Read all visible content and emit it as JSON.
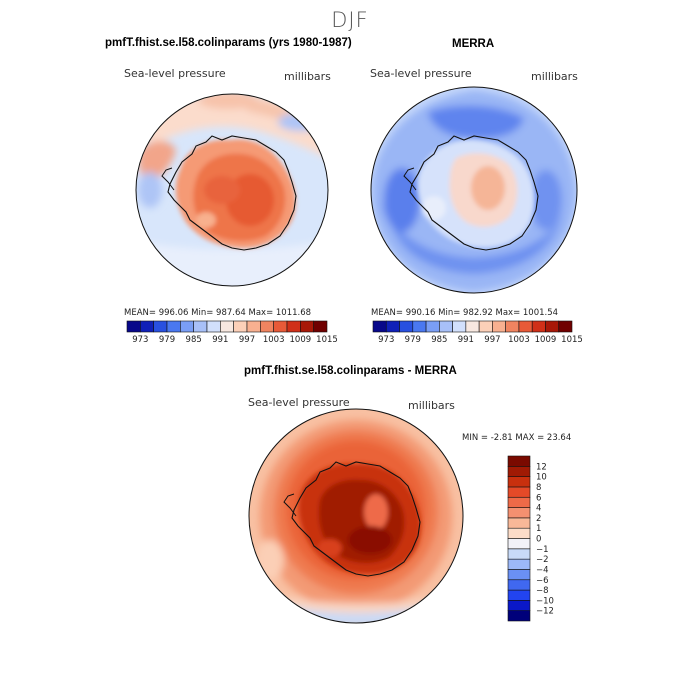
{
  "figure": {
    "season": "DJF"
  },
  "colors": {
    "abs_scale": [
      "#08088a",
      "#1020b8",
      "#2850e0",
      "#4a78f0",
      "#7a9ef5",
      "#a8c0f8",
      "#d2e0fc",
      "#f8e8e0",
      "#fcd0b8",
      "#f8b090",
      "#f08460",
      "#e85a38",
      "#d03018",
      "#a81808",
      "#700000"
    ],
    "diff_scale": [
      "#00007a",
      "#0a18c8",
      "#2244f0",
      "#4068f0",
      "#6a90f4",
      "#9cb8f8",
      "#c8daf8",
      "#f2f2f8",
      "#fcdcc8",
      "#f8b898",
      "#f49070",
      "#ee6a48",
      "#e44a28",
      "#c8300e",
      "#a01a04",
      "#7a0a00"
    ]
  },
  "panels": [
    {
      "title": "pmfT.fhist.se.l58.colinparams (yrs 1980-1987)",
      "variable": "Sea-level pressure",
      "units": "millibars",
      "stats": "MEAN= 996.06   Min= 987.64   Max= 1011.68"
    },
    {
      "title": "MERRA",
      "variable": "Sea-level pressure",
      "units": "millibars",
      "stats": "MEAN= 990.16   Min= 982.92   Max= 1001.54"
    },
    {
      "title": "pmfT.fhist.se.l58.colinparams - MERRA",
      "variable": "Sea-level pressure",
      "units": "millibars",
      "stats": "MIN =   -2.81  MAX =   23.64"
    }
  ],
  "chart_data": [
    {
      "type": "heatmap",
      "projection": "south-polar stereographic",
      "title": "pmfT.fhist.se.l58.colinparams (yrs 1980-1987)",
      "variable": "Sea-level pressure",
      "units": "millibars",
      "mean": 996.06,
      "min": 987.64,
      "max": 1011.68,
      "colorbar_ticks": [
        "973",
        "979",
        "985",
        "991",
        "997",
        "1003",
        "1009",
        "1015"
      ],
      "colorbar_levels": 15
    },
    {
      "type": "heatmap",
      "projection": "south-polar stereographic",
      "title": "MERRA",
      "variable": "Sea-level pressure",
      "units": "millibars",
      "mean": 990.16,
      "min": 982.92,
      "max": 1001.54,
      "colorbar_ticks": [
        "973",
        "979",
        "985",
        "991",
        "997",
        "1003",
        "1009",
        "1015"
      ],
      "colorbar_levels": 15
    },
    {
      "type": "heatmap",
      "projection": "south-polar stereographic",
      "title": "pmfT.fhist.se.l58.colinparams - MERRA",
      "variable": "Sea-level pressure",
      "units": "millibars",
      "min": -2.81,
      "max": 23.64,
      "colorbar_ticks": [
        "12",
        "10",
        "8",
        "6",
        "4",
        "2",
        "1",
        "0",
        "−1",
        "−2",
        "−4",
        "−6",
        "−8",
        "−10",
        "−12"
      ],
      "colorbar_levels": 16
    }
  ]
}
